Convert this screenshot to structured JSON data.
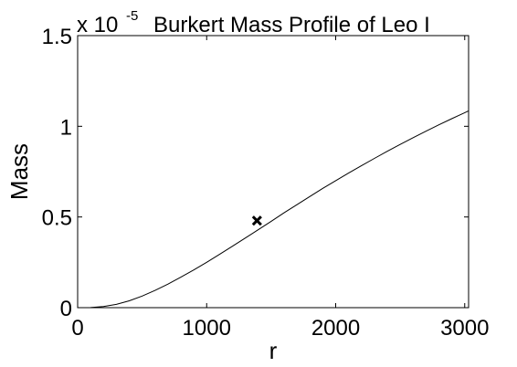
{
  "chart_data": {
    "type": "line",
    "title": "Burkert Mass Profile of Leo I",
    "xlabel": "r",
    "ylabel": "Mass",
    "y_multiplier": {
      "base": "x 10",
      "exponent": "-5"
    },
    "xlim": [
      0,
      3030
    ],
    "ylim": [
      0,
      1.5
    ],
    "x_ticks": [
      0,
      1000,
      2000,
      3000
    ],
    "x_tick_labels": [
      "0",
      "1000",
      "2000",
      "3000"
    ],
    "y_ticks": [
      0,
      0.5,
      1,
      1.5
    ],
    "y_tick_labels": [
      "0",
      "0.5",
      "1",
      "1.5"
    ],
    "grid": false,
    "series": [
      {
        "x": [
          0,
          100,
          200,
          300,
          400,
          500,
          600,
          700,
          800,
          900,
          1000,
          1100,
          1200,
          1300,
          1400,
          1500,
          1600,
          1700,
          1800,
          1900,
          2000,
          2100,
          2200,
          2300,
          2400,
          2500,
          2600,
          2700,
          2800,
          2900,
          3000,
          3030
        ],
        "y": [
          0.0,
          0.0003,
          0.006,
          0.018,
          0.038,
          0.064,
          0.095,
          0.13,
          0.168,
          0.208,
          0.25,
          0.294,
          0.339,
          0.384,
          0.43,
          0.476,
          0.523,
          0.568,
          0.613,
          0.658,
          0.7,
          0.742,
          0.783,
          0.823,
          0.862,
          0.9,
          0.937,
          0.973,
          1.008,
          1.042,
          1.075,
          1.085
        ]
      }
    ],
    "marker": {
      "x": 1390,
      "y": 0.48,
      "symbol": "x"
    }
  }
}
